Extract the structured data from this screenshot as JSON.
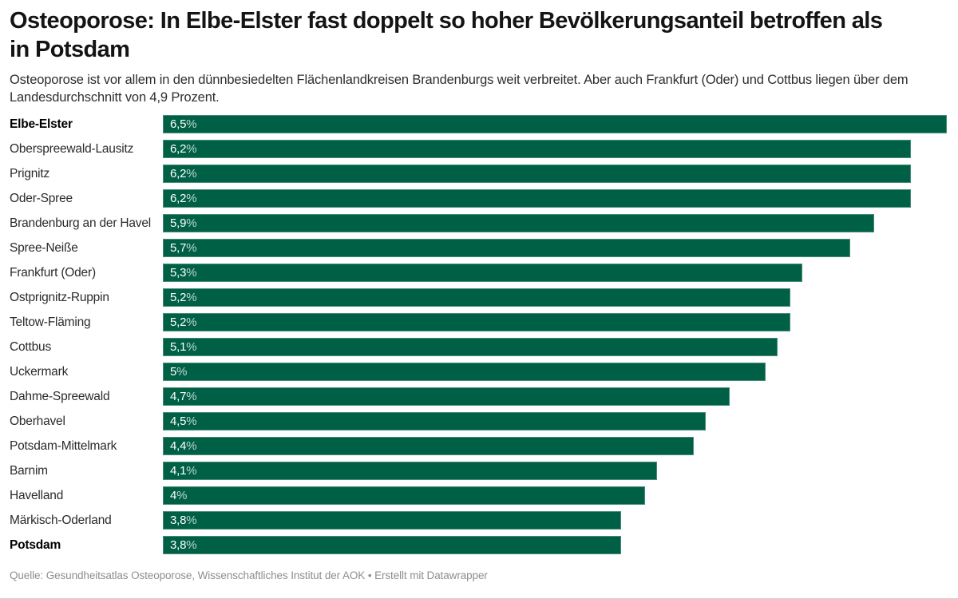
{
  "header": {
    "title": "Osteoporose: In Elbe-Elster fast doppelt so hoher Bevölkerungsanteil betroffen als in Potsdam",
    "subtitle": "Osteoporose ist vor allem in den dünnbesiedelten Flächenlandkreisen Brandenburgs weit verbreitet. Aber auch Frankfurt (Oder) und Cottbus liegen über dem Landesdurchschnitt von 4,9 Prozent."
  },
  "footer": {
    "source": "Quelle: Gesundheitsatlas Osteoporose, Wissenschaftliches Institut der AOK • Erstellt mit Datawrapper"
  },
  "colors": {
    "bar": "#006046",
    "value_text": "#ffffff",
    "title_text": "#141414",
    "footer_text": "#8e8e8e"
  },
  "chart_data": {
    "type": "bar",
    "orientation": "horizontal",
    "title": "Osteoporose: In Elbe-Elster fast doppelt so hoher Bevölkerungsanteil betroffen als in Potsdam",
    "xlabel": "",
    "ylabel": "",
    "unit": "%",
    "xlim": [
      0,
      6.5
    ],
    "grid": false,
    "legend": null,
    "value_labels_inside_bars": true,
    "categories": [
      "Elbe-Elster",
      "Oberspreewald-Lausitz",
      "Prignitz",
      "Oder-Spree",
      "Brandenburg an der Havel",
      "Spree-Neiße",
      "Frankfurt (Oder)",
      "Ostprignitz-Ruppin",
      "Teltow-Fläming",
      "Cottbus",
      "Uckermark",
      "Dahme-Spreewald",
      "Oberhavel",
      "Potsdam-Mittelmark",
      "Barnim",
      "Havelland",
      "Märkisch-Oderland",
      "Potsdam"
    ],
    "values": [
      6.5,
      6.2,
      6.2,
      6.2,
      5.9,
      5.7,
      5.3,
      5.2,
      5.2,
      5.1,
      5.0,
      4.7,
      4.5,
      4.4,
      4.1,
      4.0,
      3.8,
      3.8
    ],
    "rows": [
      {
        "label": "Elbe-Elster",
        "value": 6.5,
        "display": "6,5%",
        "bold": true
      },
      {
        "label": "Oberspreewald-Lausitz",
        "value": 6.2,
        "display": "6,2%",
        "bold": false
      },
      {
        "label": "Prignitz",
        "value": 6.2,
        "display": "6,2%",
        "bold": false
      },
      {
        "label": "Oder-Spree",
        "value": 6.2,
        "display": "6,2%",
        "bold": false
      },
      {
        "label": "Brandenburg an der Havel",
        "value": 5.9,
        "display": "5,9%",
        "bold": false
      },
      {
        "label": "Spree-Neiße",
        "value": 5.7,
        "display": "5,7%",
        "bold": false
      },
      {
        "label": "Frankfurt (Oder)",
        "value": 5.3,
        "display": "5,3%",
        "bold": false
      },
      {
        "label": "Ostprignitz-Ruppin",
        "value": 5.2,
        "display": "5,2%",
        "bold": false
      },
      {
        "label": "Teltow-Fläming",
        "value": 5.2,
        "display": "5,2%",
        "bold": false
      },
      {
        "label": "Cottbus",
        "value": 5.1,
        "display": "5,1%",
        "bold": false
      },
      {
        "label": "Uckermark",
        "value": 5.0,
        "display": "5%",
        "bold": false
      },
      {
        "label": "Dahme-Spreewald",
        "value": 4.7,
        "display": "4,7%",
        "bold": false
      },
      {
        "label": "Oberhavel",
        "value": 4.5,
        "display": "4,5%",
        "bold": false
      },
      {
        "label": "Potsdam-Mittelmark",
        "value": 4.4,
        "display": "4,4%",
        "bold": false
      },
      {
        "label": "Barnim",
        "value": 4.1,
        "display": "4,1%",
        "bold": false
      },
      {
        "label": "Havelland",
        "value": 4.0,
        "display": "4%",
        "bold": false
      },
      {
        "label": "Märkisch-Oderland",
        "value": 3.8,
        "display": "3,8%",
        "bold": false
      },
      {
        "label": "Potsdam",
        "value": 3.8,
        "display": "3,8%",
        "bold": true
      }
    ]
  }
}
